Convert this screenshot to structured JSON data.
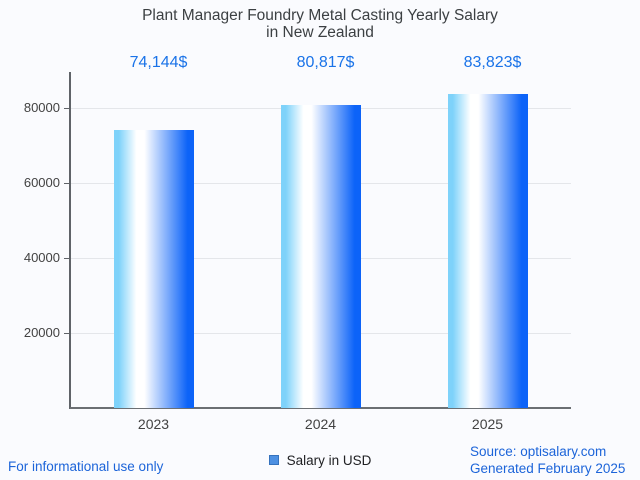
{
  "chart": {
    "title_line1": "Plant Manager Foundry Metal Casting Yearly Salary",
    "title_line2": "in New Zealand"
  },
  "chart_data": {
    "type": "bar",
    "title": "Plant Manager Foundry Metal Casting Yearly Salary in New Zealand",
    "categories": [
      "2023",
      "2024",
      "2025"
    ],
    "values": [
      74144,
      80817,
      83823
    ],
    "value_labels": [
      "74,144$",
      "80,817$",
      "83,823$"
    ],
    "series_name": "Salary in USD",
    "xlabel": "",
    "ylabel": "",
    "ylim": [
      0,
      89600
    ],
    "yticks": [
      20000,
      40000,
      60000,
      80000
    ],
    "ytick_labels": [
      "20000",
      "40000",
      "60000",
      "80000"
    ],
    "grid": true,
    "legend_position": "bottom"
  },
  "legend": {
    "label": "Salary in USD"
  },
  "footer": {
    "left": "For informational use only",
    "source": "Source: optisalary.com",
    "generated": "Generated February 2025"
  },
  "colors": {
    "background": "#fafbfe",
    "title_text": "#3c4043",
    "axis": "#5f6368",
    "grid": "#e4e6ea",
    "tick_text": "#424242",
    "value_label": "#1a73e8",
    "footer_link": "#1c64d9",
    "bar_gradient_left": "#7ed2fa",
    "bar_gradient_mid": "#ffffff",
    "bar_gradient_right": "#0c63f8",
    "legend_swatch_fill": "#4d90e2",
    "legend_swatch_border": "#3572bd"
  }
}
